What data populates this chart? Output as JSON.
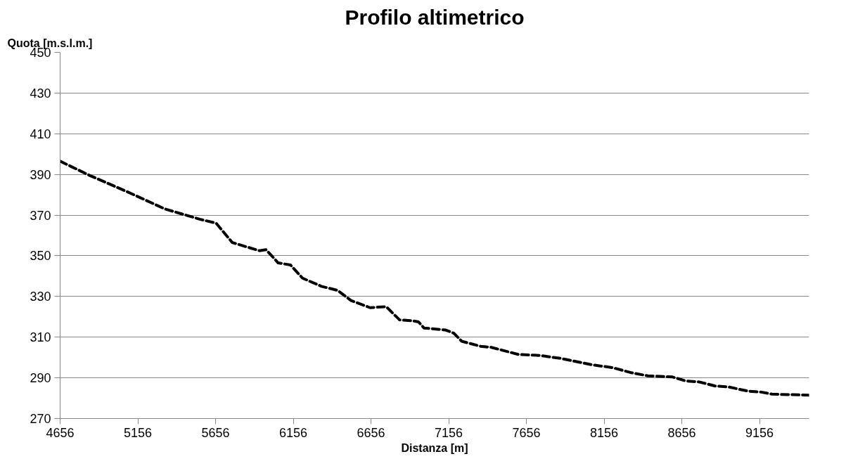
{
  "chart_data": {
    "type": "line",
    "title": "Profilo altimetrico",
    "xlabel": "Distanza [m]",
    "ylabel": "Quota [m.s.l.m.]",
    "x": [
      4656,
      4846,
      5087,
      5331,
      5554,
      5660,
      5764,
      5938,
      5981,
      6059,
      6138,
      6216,
      6337,
      6441,
      6528,
      6650,
      6754,
      6840,
      6927,
      6962,
      6997,
      7136,
      7188,
      7240,
      7362,
      7431,
      7604,
      7743,
      7882,
      8072,
      8211,
      8333,
      8437,
      8593,
      8680,
      8767,
      8871,
      8958,
      9080,
      9167,
      9236,
      9475
    ],
    "series": [
      {
        "color": "#000000",
        "values": [
          396.5,
          389.5,
          381.5,
          373,
          368,
          366,
          356.5,
          352.5,
          353,
          346.5,
          345.5,
          339,
          335,
          333,
          328,
          324.5,
          325,
          318.5,
          318,
          317.5,
          314.5,
          313.5,
          312,
          308,
          305.5,
          305,
          301.5,
          301,
          299.5,
          296.5,
          295,
          292.5,
          291,
          290.5,
          288.5,
          288,
          286,
          285.5,
          283.5,
          283,
          282,
          281.5
        ]
      }
    ],
    "xlim": [
      4656,
      9475
    ],
    "ylim": [
      270,
      450
    ],
    "xticks": [
      4656,
      5156,
      5656,
      6156,
      6656,
      7156,
      7656,
      8156,
      8656,
      9156
    ],
    "yticks": [
      270,
      290,
      310,
      330,
      350,
      370,
      390,
      410,
      430,
      450
    ],
    "grid": "y",
    "marker": "none",
    "line_style": "dashed"
  }
}
